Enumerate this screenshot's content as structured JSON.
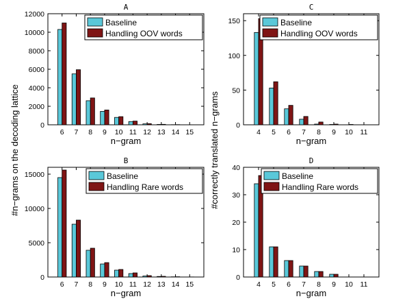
{
  "figure": {
    "ylabel_left": "#n−grams on the decoding lattice",
    "ylabel_right": "#correctly translated n−grams"
  },
  "colors": {
    "baseline": "#5ac8d9",
    "variant": "#7f1515"
  },
  "chart_data": [
    {
      "type": "bar",
      "title": "A",
      "xlabel": "n−gram",
      "categories": [
        "6",
        "7",
        "8",
        "9",
        "10",
        "11",
        "12",
        "13",
        "14",
        "15"
      ],
      "yticks": [
        0,
        2000,
        4000,
        6000,
        8000,
        10000,
        12000
      ],
      "ylim": [
        0,
        12000
      ],
      "legend_position": "top-right",
      "series": [
        {
          "name": "Baseline",
          "values": [
            10300,
            5500,
            2600,
            1450,
            800,
            350,
            100,
            40,
            15,
            5
          ]
        },
        {
          "name": "Handling OOV words",
          "values": [
            11000,
            5950,
            2900,
            1600,
            880,
            400,
            120,
            50,
            20,
            8
          ]
        }
      ]
    },
    {
      "type": "bar",
      "title": "C",
      "xlabel": "n−gram",
      "categories": [
        "4",
        "5",
        "6",
        "7",
        "8",
        "9",
        "10",
        "11"
      ],
      "yticks": [
        0,
        50,
        100,
        150
      ],
      "ylim": [
        0,
        160
      ],
      "legend_position": "top-right",
      "series": [
        {
          "name": "Baseline",
          "values": [
            133,
            53,
            23,
            8,
            1,
            0.5,
            0,
            0
          ]
        },
        {
          "name": "Handling OOV words",
          "values": [
            153,
            62,
            28,
            12,
            4,
            1,
            0.5,
            0
          ]
        }
      ]
    },
    {
      "type": "bar",
      "title": "B",
      "xlabel": "n−gram",
      "categories": [
        "6",
        "7",
        "8",
        "9",
        "10",
        "11",
        "12",
        "13",
        "14",
        "15"
      ],
      "yticks": [
        0,
        5000,
        10000,
        15000
      ],
      "ylim": [
        0,
        16000
      ],
      "legend_position": "top-right",
      "series": [
        {
          "name": "Baseline",
          "values": [
            14500,
            7700,
            3900,
            1900,
            1000,
            500,
            150,
            80,
            30,
            10
          ]
        },
        {
          "name": "Handling Rare words",
          "values": [
            15600,
            8300,
            4200,
            2100,
            1100,
            600,
            200,
            100,
            40,
            15
          ]
        }
      ]
    },
    {
      "type": "bar",
      "title": "D",
      "xlabel": "n−gram",
      "categories": [
        "4",
        "5",
        "6",
        "7",
        "8",
        "9",
        "10",
        "11"
      ],
      "yticks": [
        0,
        10,
        20,
        30,
        40
      ],
      "ylim": [
        0,
        40
      ],
      "legend_position": "top-right",
      "series": [
        {
          "name": "Baseline",
          "values": [
            34,
            11,
            6,
            4,
            2,
            1,
            0,
            0
          ]
        },
        {
          "name": "Handling Rare words",
          "values": [
            37,
            11,
            6,
            4,
            2,
            1,
            0,
            0
          ]
        }
      ]
    }
  ]
}
